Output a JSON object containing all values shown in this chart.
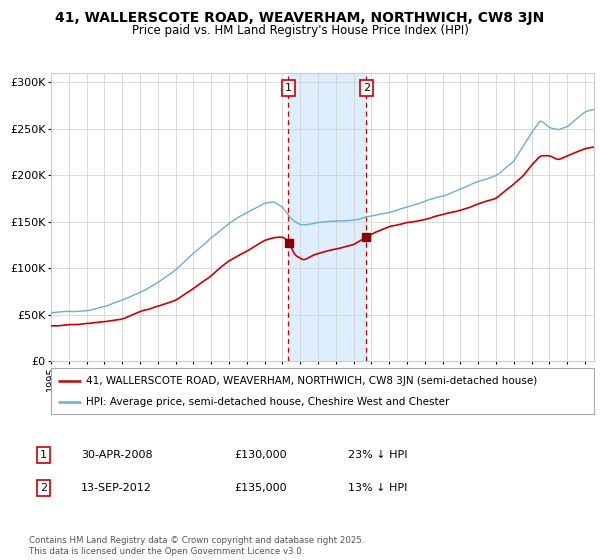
{
  "title_line1": "41, WALLERSCOTE ROAD, WEAVERHAM, NORTHWICH, CW8 3JN",
  "title_line2": "Price paid vs. HM Land Registry's House Price Index (HPI)",
  "legend_line1": "41, WALLERSCOTE ROAD, WEAVERHAM, NORTHWICH, CW8 3JN (semi-detached house)",
  "legend_line2": "HPI: Average price, semi-detached house, Cheshire West and Chester",
  "footer": "Contains HM Land Registry data © Crown copyright and database right 2025.\nThis data is licensed under the Open Government Licence v3.0.",
  "transaction1_label": "1",
  "transaction1_date": "30-APR-2008",
  "transaction1_price": "£130,000",
  "transaction1_hpi": "23% ↓ HPI",
  "transaction2_label": "2",
  "transaction2_date": "13-SEP-2012",
  "transaction2_price": "£135,000",
  "transaction2_hpi": "13% ↓ HPI",
  "hpi_color": "#6baed6",
  "price_color": "#cc0000",
  "marker_color": "#8b0000",
  "shade_color": "#ddeeff",
  "vline1_color": "#cc0000",
  "vline2_color": "#cc0000",
  "background_color": "#ffffff",
  "grid_color": "#cccccc",
  "ylim": [
    0,
    310000
  ],
  "yticks": [
    0,
    50000,
    100000,
    150000,
    200000,
    250000,
    300000
  ],
  "ytick_labels": [
    "£0",
    "£50K",
    "£100K",
    "£150K",
    "£200K",
    "£250K",
    "£300K"
  ],
  "start_year": 1995,
  "end_year": 2025,
  "transaction1_year": 2008.33,
  "transaction2_year": 2012.71,
  "xlim_left": 1995,
  "xlim_right": 2025.5
}
